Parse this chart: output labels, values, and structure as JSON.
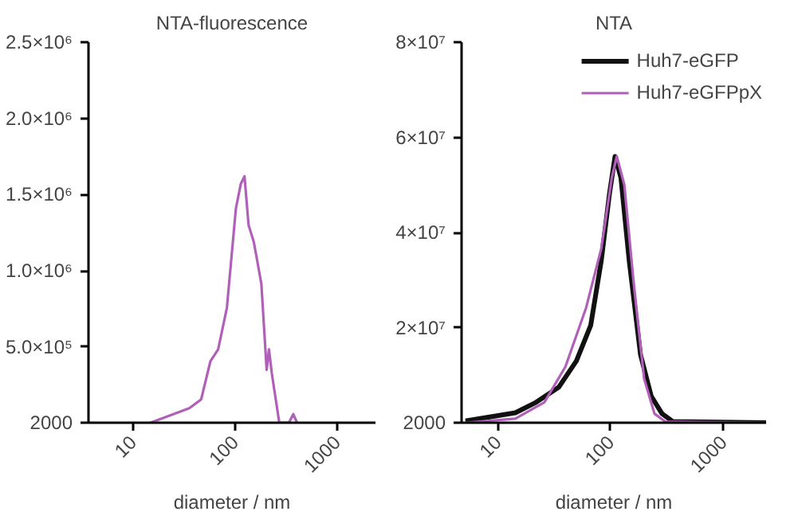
{
  "chart_data": [
    {
      "type": "line",
      "title": "NTA-fluorescence",
      "xlabel": "diameter / nm",
      "log": "x",
      "xlim": [
        3.7,
        2400
      ],
      "xticks": [
        10,
        100,
        1000
      ],
      "ylim": [
        2000,
        2500000
      ],
      "yticks": [
        {
          "value": 2000,
          "label": "2000"
        },
        {
          "value": 500000,
          "label": "5.0×10⁵"
        },
        {
          "value": 1000000,
          "label": "1.0×10⁶"
        },
        {
          "value": 1500000,
          "label": "1.5×10⁶"
        },
        {
          "value": 2000000,
          "label": "2.0×10⁶"
        },
        {
          "value": 2500000,
          "label": "2.5×10⁶"
        }
      ],
      "legend": false,
      "grid": false,
      "series": [
        {
          "color": "#b060b8",
          "x": [
            15,
            36,
            47,
            58,
            69,
            84,
            103,
            115,
            125,
            137,
            146,
            154,
            164,
            183,
            206,
            217,
            231,
            274,
            340,
            376,
            409
          ],
          "values": [
            2000,
            97000,
            155000,
            407000,
            484000,
            756000,
            1410000,
            1570000,
            1620000,
            1300000,
            1240000,
            1190000,
            1090000,
            911000,
            349000,
            484000,
            330000,
            2000,
            2000,
            58000,
            2000
          ]
        }
      ]
    },
    {
      "type": "line",
      "title": "NTA",
      "xlabel": "diameter / nm",
      "log": "x",
      "xlim": [
        4.8,
        2400
      ],
      "xticks": [
        10,
        100,
        1000
      ],
      "ylim": [
        2000,
        80000000
      ],
      "yticks": [
        {
          "value": 2000,
          "label": "2000"
        },
        {
          "value": 20000000,
          "label": "2×10⁷"
        },
        {
          "value": 40000000,
          "label": "4×10⁷"
        },
        {
          "value": 60000000,
          "label": "6×10⁷"
        },
        {
          "value": 80000000,
          "label": "8×10⁷"
        }
      ],
      "legend": "top right",
      "grid": false,
      "series": [
        {
          "name": "Huh7-eGFP",
          "color": "#111111",
          "x": [
            5.2,
            14.4,
            22,
            35,
            50,
            67,
            83,
            98,
            110,
            124,
            147,
            185,
            230,
            287,
            357,
            2400
          ],
          "values": [
            370000,
            2100000,
            4300000,
            7500000,
            13000000,
            20500000,
            34000000,
            48000000,
            56000000,
            51500000,
            34000000,
            14300000,
            5600000,
            1900000,
            250000,
            2000
          ]
        },
        {
          "name": "Huh7-eGFPpX",
          "color": "#b060b8",
          "x": [
            5.2,
            14.4,
            26,
            40,
            61,
            83,
            103,
            114,
            133,
            160,
            199,
            246,
            306,
            2400
          ],
          "values": [
            2000,
            870000,
            4300000,
            11800000,
            24200000,
            36600000,
            51500000,
            56000000,
            50000000,
            30000000,
            9300000,
            1900000,
            250000,
            2000
          ]
        }
      ]
    }
  ]
}
